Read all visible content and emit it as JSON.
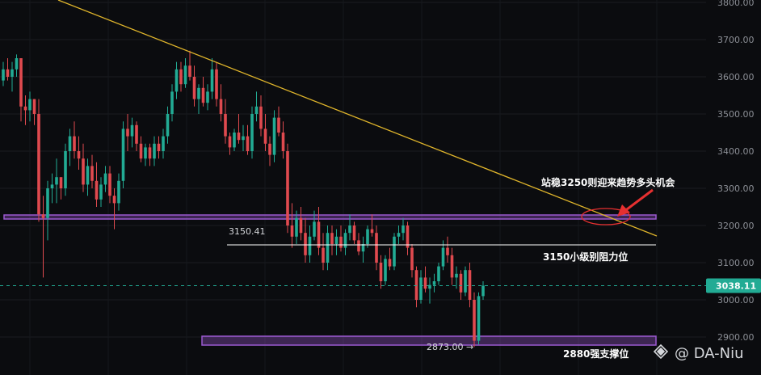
{
  "chart_data": {
    "type": "candlestick",
    "ylim": [
      2860,
      3810
    ],
    "y_ticks": [
      2900,
      3000,
      3100,
      3200,
      3300,
      3400,
      3500,
      3600,
      3700,
      3800
    ],
    "y_tick_labels": [
      "2900.00",
      "3000.00",
      "3100.00",
      "3200.00",
      "3300.00",
      "3400.00",
      "3500.00",
      "3600.00",
      "3700.00",
      "3800.00"
    ],
    "current_price": 3038.11,
    "current_price_label": "3038.11",
    "candles": [
      [
        3590,
        3640,
        3575,
        3620
      ],
      [
        3620,
        3650,
        3590,
        3600
      ],
      [
        3600,
        3640,
        3560,
        3620
      ],
      [
        3620,
        3660,
        3600,
        3650
      ],
      [
        3650,
        3645,
        3480,
        3520
      ],
      [
        3520,
        3550,
        3470,
        3510
      ],
      [
        3510,
        3560,
        3480,
        3540
      ],
      [
        3540,
        3540,
        3470,
        3500
      ],
      [
        3500,
        3540,
        3210,
        3230
      ],
      [
        3230,
        3280,
        3060,
        3220
      ],
      [
        3220,
        3320,
        3160,
        3300
      ],
      [
        3300,
        3340,
        3260,
        3310
      ],
      [
        3310,
        3380,
        3260,
        3330
      ],
      [
        3330,
        3330,
        3270,
        3300
      ],
      [
        3300,
        3420,
        3280,
        3400
      ],
      [
        3400,
        3460,
        3360,
        3440
      ],
      [
        3440,
        3480,
        3380,
        3400
      ],
      [
        3400,
        3440,
        3350,
        3380
      ],
      [
        3380,
        3420,
        3290,
        3310
      ],
      [
        3310,
        3380,
        3280,
        3360
      ],
      [
        3360,
        3390,
        3300,
        3320
      ],
      [
        3320,
        3370,
        3250,
        3270
      ],
      [
        3270,
        3330,
        3250,
        3310
      ],
      [
        3310,
        3360,
        3290,
        3340
      ],
      [
        3340,
        3360,
        3260,
        3280
      ],
      [
        3280,
        3300,
        3190,
        3260
      ],
      [
        3260,
        3340,
        3240,
        3320
      ],
      [
        3320,
        3480,
        3300,
        3460
      ],
      [
        3460,
        3500,
        3400,
        3440
      ],
      [
        3440,
        3490,
        3410,
        3470
      ],
      [
        3470,
        3480,
        3400,
        3420
      ],
      [
        3420,
        3440,
        3370,
        3380
      ],
      [
        3380,
        3420,
        3360,
        3410
      ],
      [
        3410,
        3420,
        3360,
        3380
      ],
      [
        3380,
        3440,
        3360,
        3420
      ],
      [
        3420,
        3440,
        3380,
        3400
      ],
      [
        3400,
        3460,
        3380,
        3440
      ],
      [
        3440,
        3520,
        3420,
        3500
      ],
      [
        3500,
        3580,
        3480,
        3560
      ],
      [
        3560,
        3640,
        3540,
        3620
      ],
      [
        3620,
        3640,
        3560,
        3580
      ],
      [
        3580,
        3650,
        3570,
        3630
      ],
      [
        3630,
        3670,
        3590,
        3600
      ],
      [
        3600,
        3630,
        3520,
        3540
      ],
      [
        3540,
        3580,
        3500,
        3570
      ],
      [
        3570,
        3600,
        3520,
        3530
      ],
      [
        3530,
        3580,
        3510,
        3560
      ],
      [
        3560,
        3650,
        3540,
        3620
      ],
      [
        3620,
        3640,
        3520,
        3540
      ],
      [
        3540,
        3580,
        3480,
        3500
      ],
      [
        3500,
        3540,
        3420,
        3440
      ],
      [
        3440,
        3450,
        3390,
        3410
      ],
      [
        3410,
        3460,
        3400,
        3450
      ],
      [
        3450,
        3500,
        3420,
        3430
      ],
      [
        3430,
        3470,
        3400,
        3440
      ],
      [
        3440,
        3470,
        3390,
        3400
      ],
      [
        3400,
        3520,
        3380,
        3500
      ],
      [
        3500,
        3560,
        3480,
        3520
      ],
      [
        3520,
        3550,
        3440,
        3460
      ],
      [
        3460,
        3500,
        3400,
        3420
      ],
      [
        3420,
        3440,
        3360,
        3390
      ],
      [
        3390,
        3510,
        3370,
        3490
      ],
      [
        3490,
        3520,
        3440,
        3450
      ],
      [
        3450,
        3480,
        3380,
        3400
      ],
      [
        3400,
        3420,
        3180,
        3200
      ],
      [
        3200,
        3260,
        3140,
        3170
      ],
      [
        3170,
        3240,
        3150,
        3220
      ],
      [
        3220,
        3250,
        3160,
        3180
      ],
      [
        3180,
        3220,
        3100,
        3120
      ],
      [
        3120,
        3200,
        3100,
        3170
      ],
      [
        3170,
        3240,
        3160,
        3210
      ],
      [
        3210,
        3250,
        3120,
        3140
      ],
      [
        3140,
        3180,
        3080,
        3100
      ],
      [
        3100,
        3200,
        3080,
        3180
      ],
      [
        3180,
        3200,
        3120,
        3150
      ],
      [
        3150,
        3190,
        3120,
        3170
      ],
      [
        3170,
        3200,
        3130,
        3140
      ],
      [
        3140,
        3190,
        3120,
        3180
      ],
      [
        3180,
        3230,
        3160,
        3200
      ],
      [
        3200,
        3210,
        3150,
        3160
      ],
      [
        3160,
        3180,
        3120,
        3130
      ],
      [
        3130,
        3170,
        3100,
        3150
      ],
      [
        3150,
        3200,
        3140,
        3190
      ],
      [
        3190,
        3230,
        3170,
        3180
      ],
      [
        3180,
        3200,
        3080,
        3100
      ],
      [
        3100,
        3120,
        3030,
        3050
      ],
      [
        3050,
        3120,
        3040,
        3110
      ],
      [
        3110,
        3140,
        3080,
        3090
      ],
      [
        3090,
        3180,
        3080,
        3170
      ],
      [
        3170,
        3200,
        3150,
        3180
      ],
      [
        3180,
        3220,
        3160,
        3200
      ],
      [
        3200,
        3210,
        3120,
        3140
      ],
      [
        3140,
        3150,
        3060,
        3080
      ],
      [
        3080,
        3090,
        2980,
        3000
      ],
      [
        3000,
        3080,
        2990,
        3060
      ],
      [
        3060,
        3090,
        3020,
        3030
      ],
      [
        3030,
        3060,
        2990,
        3040
      ],
      [
        3040,
        3070,
        3020,
        3050
      ],
      [
        3050,
        3100,
        3040,
        3090
      ],
      [
        3090,
        3160,
        3080,
        3140
      ],
      [
        3140,
        3170,
        3100,
        3120
      ],
      [
        3120,
        3140,
        3040,
        3060
      ],
      [
        3060,
        3090,
        3030,
        3070
      ],
      [
        3070,
        3080,
        3000,
        3020
      ],
      [
        3020,
        3090,
        3010,
        3080
      ],
      [
        3080,
        3100,
        2980,
        3000
      ],
      [
        3000,
        3020,
        2873,
        2890
      ],
      [
        2890,
        3020,
        2880,
        3010
      ],
      [
        3010,
        3050,
        3000,
        3038
      ]
    ]
  },
  "annotations": {
    "resistance_price_label": "3150.41",
    "low_price_label": "2873.00 →",
    "text_top": "站稳3250则迎来趋势多头机会",
    "text_mid": "3150小级别阻力位",
    "text_bottom": "2880强支撑位"
  },
  "watermark": {
    "text": "@ DA-Niu"
  },
  "colors": {
    "bull": "#22ab94",
    "bear": "#e04a4f",
    "trendline": "#e0b52b",
    "zone": "#9b59d0",
    "level_line": "#ffffff",
    "price_dash": "#22ab94",
    "ellipse": "#e63030",
    "arrow": "#e63030"
  }
}
